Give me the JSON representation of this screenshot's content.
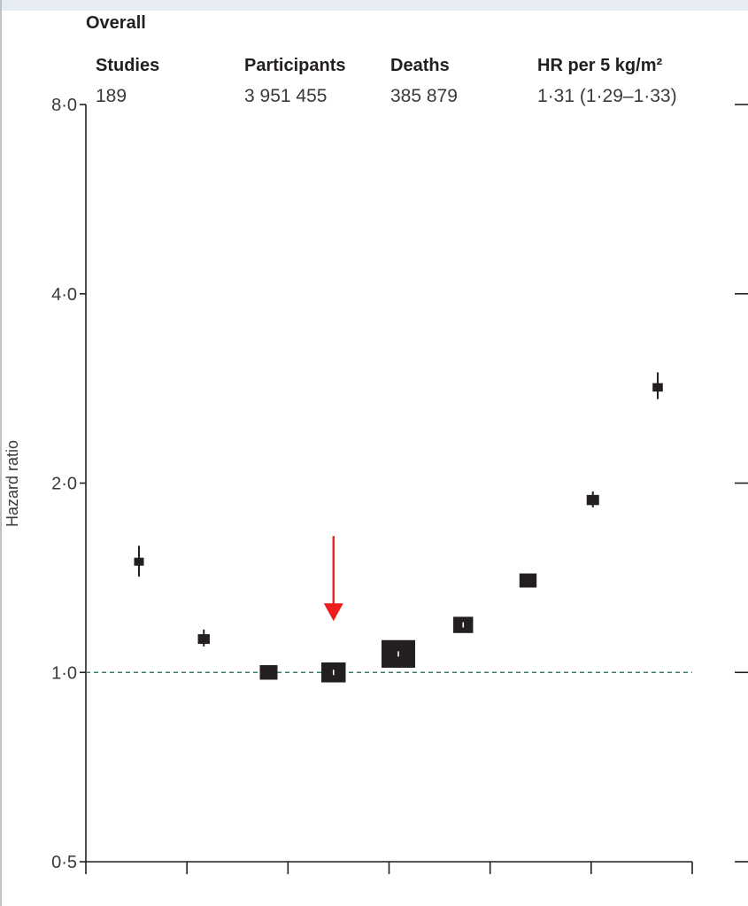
{
  "chart_data": {
    "type": "scatter",
    "title": "Overall",
    "ylabel": "Hazard ratio",
    "y_scale": "log",
    "ylim": [
      0.5,
      8.0
    ],
    "y_ticks": [
      {
        "value": 0.5,
        "label": "0·5"
      },
      {
        "value": 1.0,
        "label": "1·0"
      },
      {
        "value": 2.0,
        "label": "2·0"
      },
      {
        "value": 4.0,
        "label": "4·0"
      },
      {
        "value": 8.0,
        "label": "8·0"
      }
    ],
    "reference_line": 1.0,
    "reference_line_color": "#3c7c6e",
    "grid": false,
    "summary": {
      "headers": [
        "Studies",
        "Participants",
        "Deaths",
        "HR per 5 kg/m²"
      ],
      "values": [
        "189",
        "3 951 455",
        "385 879",
        "1·31 (1·29–1·33)"
      ]
    },
    "points": [
      {
        "hr": 1.5,
        "lo": 1.42,
        "hi": 1.59,
        "weight": 0.1,
        "hollow": false
      },
      {
        "hr": 1.13,
        "lo": 1.1,
        "hi": 1.17,
        "weight": 0.18,
        "hollow": false
      },
      {
        "hr": 1.0,
        "lo": 0.99,
        "hi": 1.01,
        "weight": 0.4,
        "hollow": false
      },
      {
        "hr": 1.0,
        "lo": 0.99,
        "hi": 1.01,
        "weight": 0.65,
        "hollow": true
      },
      {
        "hr": 1.07,
        "lo": 1.06,
        "hi": 1.08,
        "weight": 1.0,
        "hollow": true
      },
      {
        "hr": 1.19,
        "lo": 1.18,
        "hi": 1.2,
        "weight": 0.48,
        "hollow": true
      },
      {
        "hr": 1.4,
        "lo": 1.38,
        "hi": 1.42,
        "weight": 0.38,
        "hollow": false
      },
      {
        "hr": 1.88,
        "lo": 1.83,
        "hi": 1.94,
        "weight": 0.2,
        "hollow": false
      },
      {
        "hr": 2.84,
        "lo": 2.72,
        "hi": 3.0,
        "weight": 0.12,
        "hollow": false
      }
    ],
    "annotation": {
      "type": "arrow",
      "color": "#ee1c1c",
      "point_index": 3
    }
  }
}
